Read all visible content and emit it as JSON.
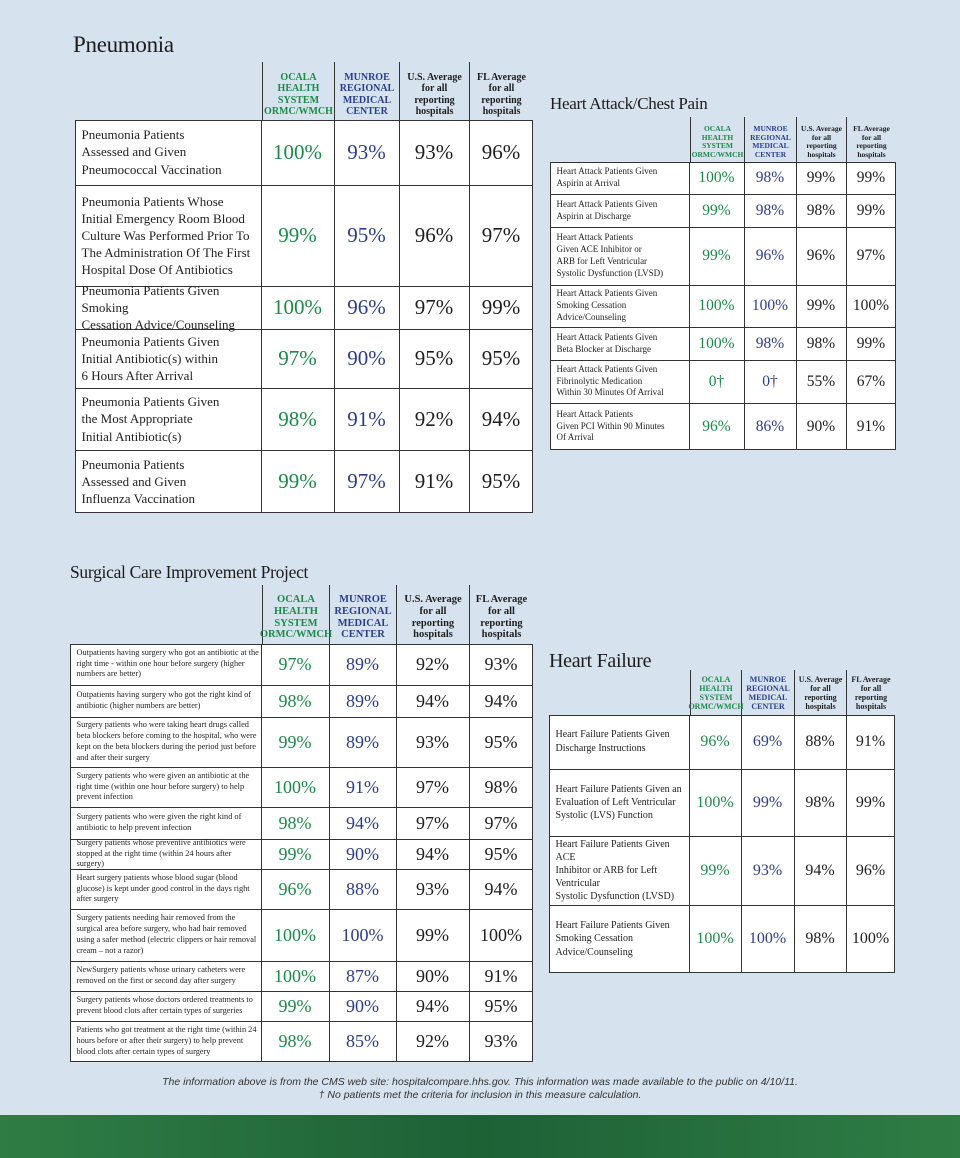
{
  "pneumonia": {
    "title": "Pneumonia",
    "columns": [
      "OCALA\nHEALTH\nSYSTEM\nORMC/WMCH",
      "MUNROE\nREGIONAL\nMEDICAL\nCENTER",
      "U.S. Average\nfor all\nreporting\nhospitals",
      "FL Average\nfor all\nreporting\nhospitals"
    ],
    "rows": [
      {
        "label": "Pneumonia Patients\nAssessed and Given\nPneumococcal Vaccination",
        "values": [
          "100%",
          "93%",
          "93%",
          "96%"
        ]
      },
      {
        "label": "Pneumonia Patients Whose\nInitial Emergency Room Blood\nCulture Was Performed Prior To\nThe Administration Of The First\nHospital Dose Of Antibiotics",
        "values": [
          "99%",
          "95%",
          "96%",
          "97%"
        ]
      },
      {
        "label": "Pneumonia Patients Given Smoking\nCessation Advice/Counseling",
        "values": [
          "100%",
          "96%",
          "97%",
          "99%"
        ]
      },
      {
        "label": "Pneumonia Patients Given\nInitial Antibiotic(s) within\n6 Hours After Arrival",
        "values": [
          "97%",
          "90%",
          "95%",
          "95%"
        ]
      },
      {
        "label": "Pneumonia Patients Given\nthe Most Appropriate\nInitial Antibiotic(s)",
        "values": [
          "98%",
          "91%",
          "92%",
          "94%"
        ]
      },
      {
        "label": "Pneumonia Patients\nAssessed and Given\nInfluenza Vaccination",
        "values": [
          "99%",
          "97%",
          "91%",
          "95%"
        ]
      }
    ]
  },
  "heart_attack": {
    "title": "Heart Attack/Chest Pain",
    "columns": [
      "OCALA\nHEALTH\nSYSTEM\nORMC/WMCH",
      "MUNROE\nREGIONAL\nMEDICAL\nCENTER",
      "U.S. Average\nfor all\nreporting\nhospitals",
      "FL Average\nfor all\nreporting\nhospitals"
    ],
    "rows": [
      {
        "label": "Heart Attack Patients Given\nAspirin at Arrival",
        "values": [
          "100%",
          "98%",
          "99%",
          "99%"
        ]
      },
      {
        "label": "Heart Attack Patients Given\nAspirin at Discharge",
        "values": [
          "99%",
          "98%",
          "98%",
          "99%"
        ]
      },
      {
        "label": "Heart Attack Patients\nGiven ACE Inhibitor or\nARB for Left Ventricular\nSystolic Dysfunction (LVSD)",
        "values": [
          "99%",
          "96%",
          "96%",
          "97%"
        ]
      },
      {
        "label": "Heart Attack Patients Given\nSmoking Cessation\nAdvice/Counseling",
        "values": [
          "100%",
          "100%",
          "99%",
          "100%"
        ]
      },
      {
        "label": "Heart Attack Patients Given\nBeta Blocker at Discharge",
        "values": [
          "100%",
          "98%",
          "98%",
          "99%"
        ]
      },
      {
        "label": "Heart Attack Patients Given\nFibrinolytic Medication\nWithin 30 Minutes Of Arrival",
        "values": [
          "0†",
          "0†",
          "55%",
          "67%"
        ]
      },
      {
        "label": "Heart Attack Patients\nGiven PCI Within 90 Minutes\nOf Arrival",
        "values": [
          "96%",
          "86%",
          "90%",
          "91%"
        ]
      }
    ]
  },
  "surgical": {
    "title": "Surgical Care Improvement Project",
    "columns": [
      "OCALA\nHEALTH\nSYSTEM\nORMC/WMCH",
      "MUNROE\nREGIONAL\nMEDICAL\nCENTER",
      "U.S. Average\nfor all\nreporting\nhospitals",
      "FL Average\nfor all\nreporting\nhospitals"
    ],
    "rows": [
      {
        "label": "Outpatients having surgery who got an antibiotic at the\nright time - within one hour before surgery (higher\nnumbers are better)",
        "values": [
          "97%",
          "89%",
          "92%",
          "93%"
        ]
      },
      {
        "label": "Outpatients having surgery who got the right kind of\nantibiotic (higher numbers are better)",
        "values": [
          "98%",
          "89%",
          "94%",
          "94%"
        ]
      },
      {
        "label": "Surgery patients who were taking heart drugs called\nbeta blockers before coming to the hospital, who were\nkept on the beta blockers during the period just before\nand after their surgery",
        "values": [
          "99%",
          "89%",
          "93%",
          "95%"
        ]
      },
      {
        "label": "Surgery patients who were given an antibiotic at the\nright time (within one hour before surgery) to help\nprevent infection",
        "values": [
          "100%",
          "91%",
          "97%",
          "98%"
        ]
      },
      {
        "label": "Surgery patients who were given the right kind of\nantibiotic to help prevent infection",
        "values": [
          "98%",
          "94%",
          "97%",
          "97%"
        ]
      },
      {
        "label": "Surgery patients whose preventive antibiotics were\nstopped at the right time (within 24 hours after surgery)",
        "values": [
          "99%",
          "90%",
          "94%",
          "95%"
        ]
      },
      {
        "label": "Heart surgery patients whose blood sugar (blood\nglucose) is kept under good control in the days right\nafter surgery",
        "values": [
          "96%",
          "88%",
          "93%",
          "94%"
        ]
      },
      {
        "label": "Surgery patients needing hair removed from the\nsurgical area before surgery, who had hair removed\nusing a safer method (electric clippers or hair removal\ncream – not a razor)",
        "values": [
          "100%",
          "100%",
          "99%",
          "100%"
        ]
      },
      {
        "label": "NewSurgery patients whose urinary catheters were\nremoved on the first or second day after surgery",
        "values": [
          "100%",
          "87%",
          "90%",
          "91%"
        ]
      },
      {
        "label": "Surgery patients whose doctors ordered treatments to\nprevent blood clots after certain types of surgeries",
        "values": [
          "99%",
          "90%",
          "94%",
          "95%"
        ]
      },
      {
        "label": "Patients who got treatment at the right time (within 24\nhours before or after their surgery) to help prevent\nblood clots after certain types of surgery",
        "values": [
          "98%",
          "85%",
          "92%",
          "93%"
        ]
      }
    ]
  },
  "heart_failure": {
    "title": "Heart Failure",
    "columns": [
      "OCALA\nHEALTH\nSYSTEM\nORMC/WMCH",
      "MUNROE\nREGIONAL\nMEDICAL\nCENTER",
      "U.S. Average\nfor all\nreporting\nhospitals",
      "FL Average\nfor all\nreporting\nhospitals"
    ],
    "rows": [
      {
        "label": "Heart Failure Patients Given\nDischarge Instructions",
        "values": [
          "96%",
          "69%",
          "88%",
          "91%"
        ]
      },
      {
        "label": "Heart Failure Patients Given an\nEvaluation of Left Ventricular\nSystolic (LVS) Function",
        "values": [
          "100%",
          "99%",
          "98%",
          "99%"
        ]
      },
      {
        "label": "Heart Failure Patients Given ACE\nInhibitor or ARB for Left Ventricular\nSystolic Dysfunction (LVSD)",
        "values": [
          "99%",
          "93%",
          "94%",
          "96%"
        ]
      },
      {
        "label": "Heart Failure Patients Given\nSmoking Cessation\nAdvice/Counseling",
        "values": [
          "100%",
          "100%",
          "98%",
          "100%"
        ]
      }
    ]
  },
  "footer": {
    "note": "The information above is from the CMS web site: hospitalcompare.hhs.gov. This information was made available to the public on 4/10/11.",
    "footnote": "† No patients met the criteria for inclusion in this measure calculation."
  }
}
